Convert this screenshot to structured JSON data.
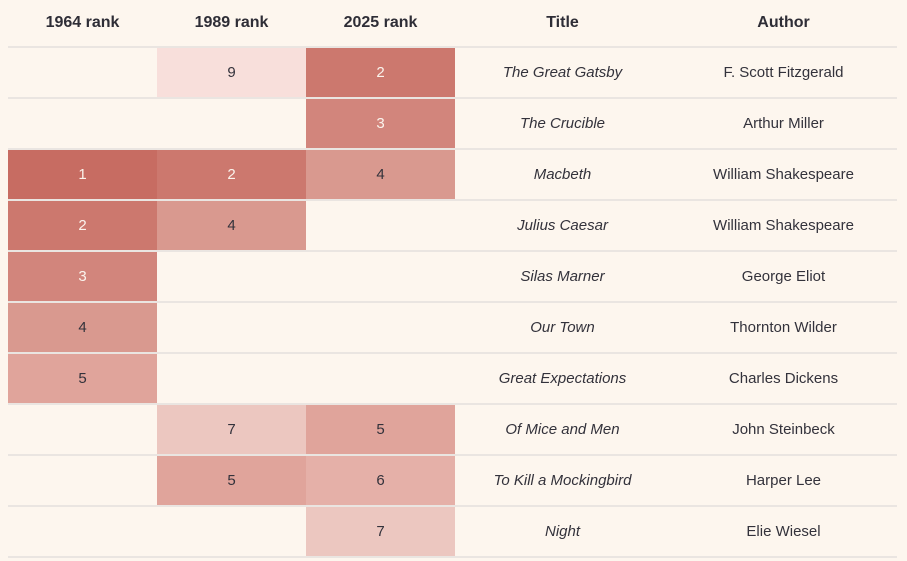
{
  "chart_data": {
    "type": "table",
    "columns": [
      "1964 rank",
      "1989 rank",
      "2025 rank",
      "Title",
      "Author"
    ],
    "rows": [
      {
        "rank_1964": null,
        "rank_1989": 9,
        "rank_2025": 2,
        "title": "The Great Gatsby",
        "author": "F. Scott Fitzgerald"
      },
      {
        "rank_1964": null,
        "rank_1989": null,
        "rank_2025": 3,
        "title": "The Crucible",
        "author": "Arthur Miller"
      },
      {
        "rank_1964": 1,
        "rank_1989": 2,
        "rank_2025": 4,
        "title": "Macbeth",
        "author": "William Shakespeare"
      },
      {
        "rank_1964": 2,
        "rank_1989": 4,
        "rank_2025": null,
        "title": "Julius Caesar",
        "author": "William Shakespeare"
      },
      {
        "rank_1964": 3,
        "rank_1989": null,
        "rank_2025": null,
        "title": "Silas Marner",
        "author": "George Eliot"
      },
      {
        "rank_1964": 4,
        "rank_1989": null,
        "rank_2025": null,
        "title": "Our Town",
        "author": "Thornton Wilder"
      },
      {
        "rank_1964": 5,
        "rank_1989": null,
        "rank_2025": null,
        "title": "Great Expectations",
        "author": "Charles Dickens"
      },
      {
        "rank_1964": null,
        "rank_1989": 7,
        "rank_2025": 5,
        "title": "Of Mice and Men",
        "author": "John Steinbeck"
      },
      {
        "rank_1964": null,
        "rank_1989": 5,
        "rank_2025": 6,
        "title": "To Kill a Mockingbird",
        "author": "Harper Lee"
      },
      {
        "rank_1964": null,
        "rank_1989": null,
        "rank_2025": 7,
        "title": "Night",
        "author": "Elie Wiesel"
      }
    ],
    "heatmap": {
      "scale_by": "rank value (1 = darkest)",
      "white_text_max_rank": 3,
      "colors": {
        "1": "#c76c62",
        "2": "#cc786e",
        "3": "#d2857c",
        "4": "#d9998f",
        "5": "#e0a49b",
        "6": "#e5b0a8",
        "7": "#ecc7c0",
        "9": "#f8dfdb"
      }
    },
    "legend_position": "none",
    "grid": "horizontal separators only"
  },
  "colors": {
    "background": "#fdf6ee",
    "separator": "#eae5e1",
    "header_text": "#2e2d36",
    "text_dark": "#33323b",
    "rank_text_light": "#fbf4ed"
  }
}
